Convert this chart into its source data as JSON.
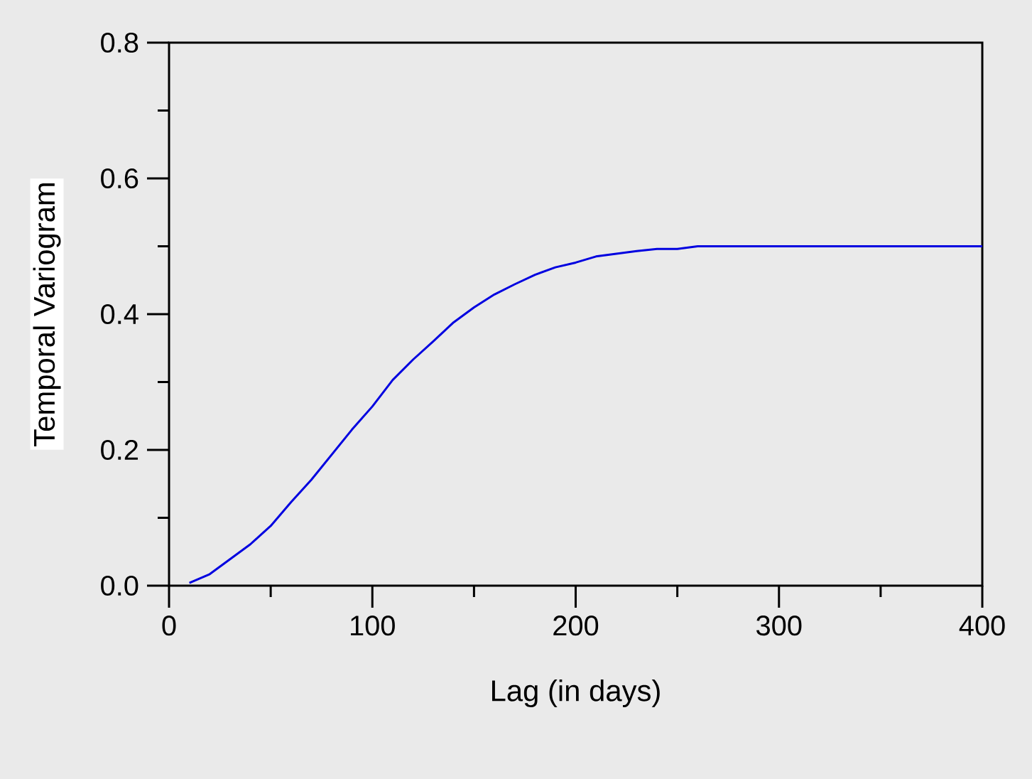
{
  "chart_data": {
    "type": "line",
    "xlabel": "Lag (in days)",
    "ylabel": "Temporal Variogram",
    "x": [
      10,
      20,
      30,
      40,
      50,
      60,
      70,
      80,
      90,
      100,
      110,
      120,
      130,
      140,
      150,
      160,
      170,
      180,
      190,
      200,
      210,
      220,
      230,
      240,
      250,
      260,
      400
    ],
    "series": [
      {
        "color": "#0000e0",
        "values": [
          0.004,
          0.017,
          0.039,
          0.061,
          0.088,
          0.123,
          0.156,
          0.193,
          0.23,
          0.264,
          0.303,
          0.333,
          0.36,
          0.388,
          0.41,
          0.429,
          0.444,
          0.458,
          0.469,
          0.476,
          0.485,
          0.489,
          0.493,
          0.496,
          0.496,
          0.5,
          0.5
        ]
      }
    ],
    "xlim": [
      0,
      400
    ],
    "xticks": [
      0,
      {
        "value": 50,
        "label": null
      },
      100,
      {
        "value": 150,
        "label": null
      },
      200,
      {
        "value": 250,
        "label": null
      },
      300,
      {
        "value": 350,
        "label": null
      },
      400
    ],
    "ylim": [
      0,
      0.8
    ],
    "yticks": [
      {
        "value": 0,
        "label": "0.0"
      },
      {
        "value": 0.1,
        "label": null
      },
      0.2,
      {
        "value": 0.3,
        "label": null
      },
      0.4,
      {
        "value": 0.5,
        "label": null
      },
      0.6,
      {
        "value": 0.7,
        "label": null
      },
      0.8
    ],
    "grid": false,
    "marker": "none",
    "line_style": "solid"
  }
}
